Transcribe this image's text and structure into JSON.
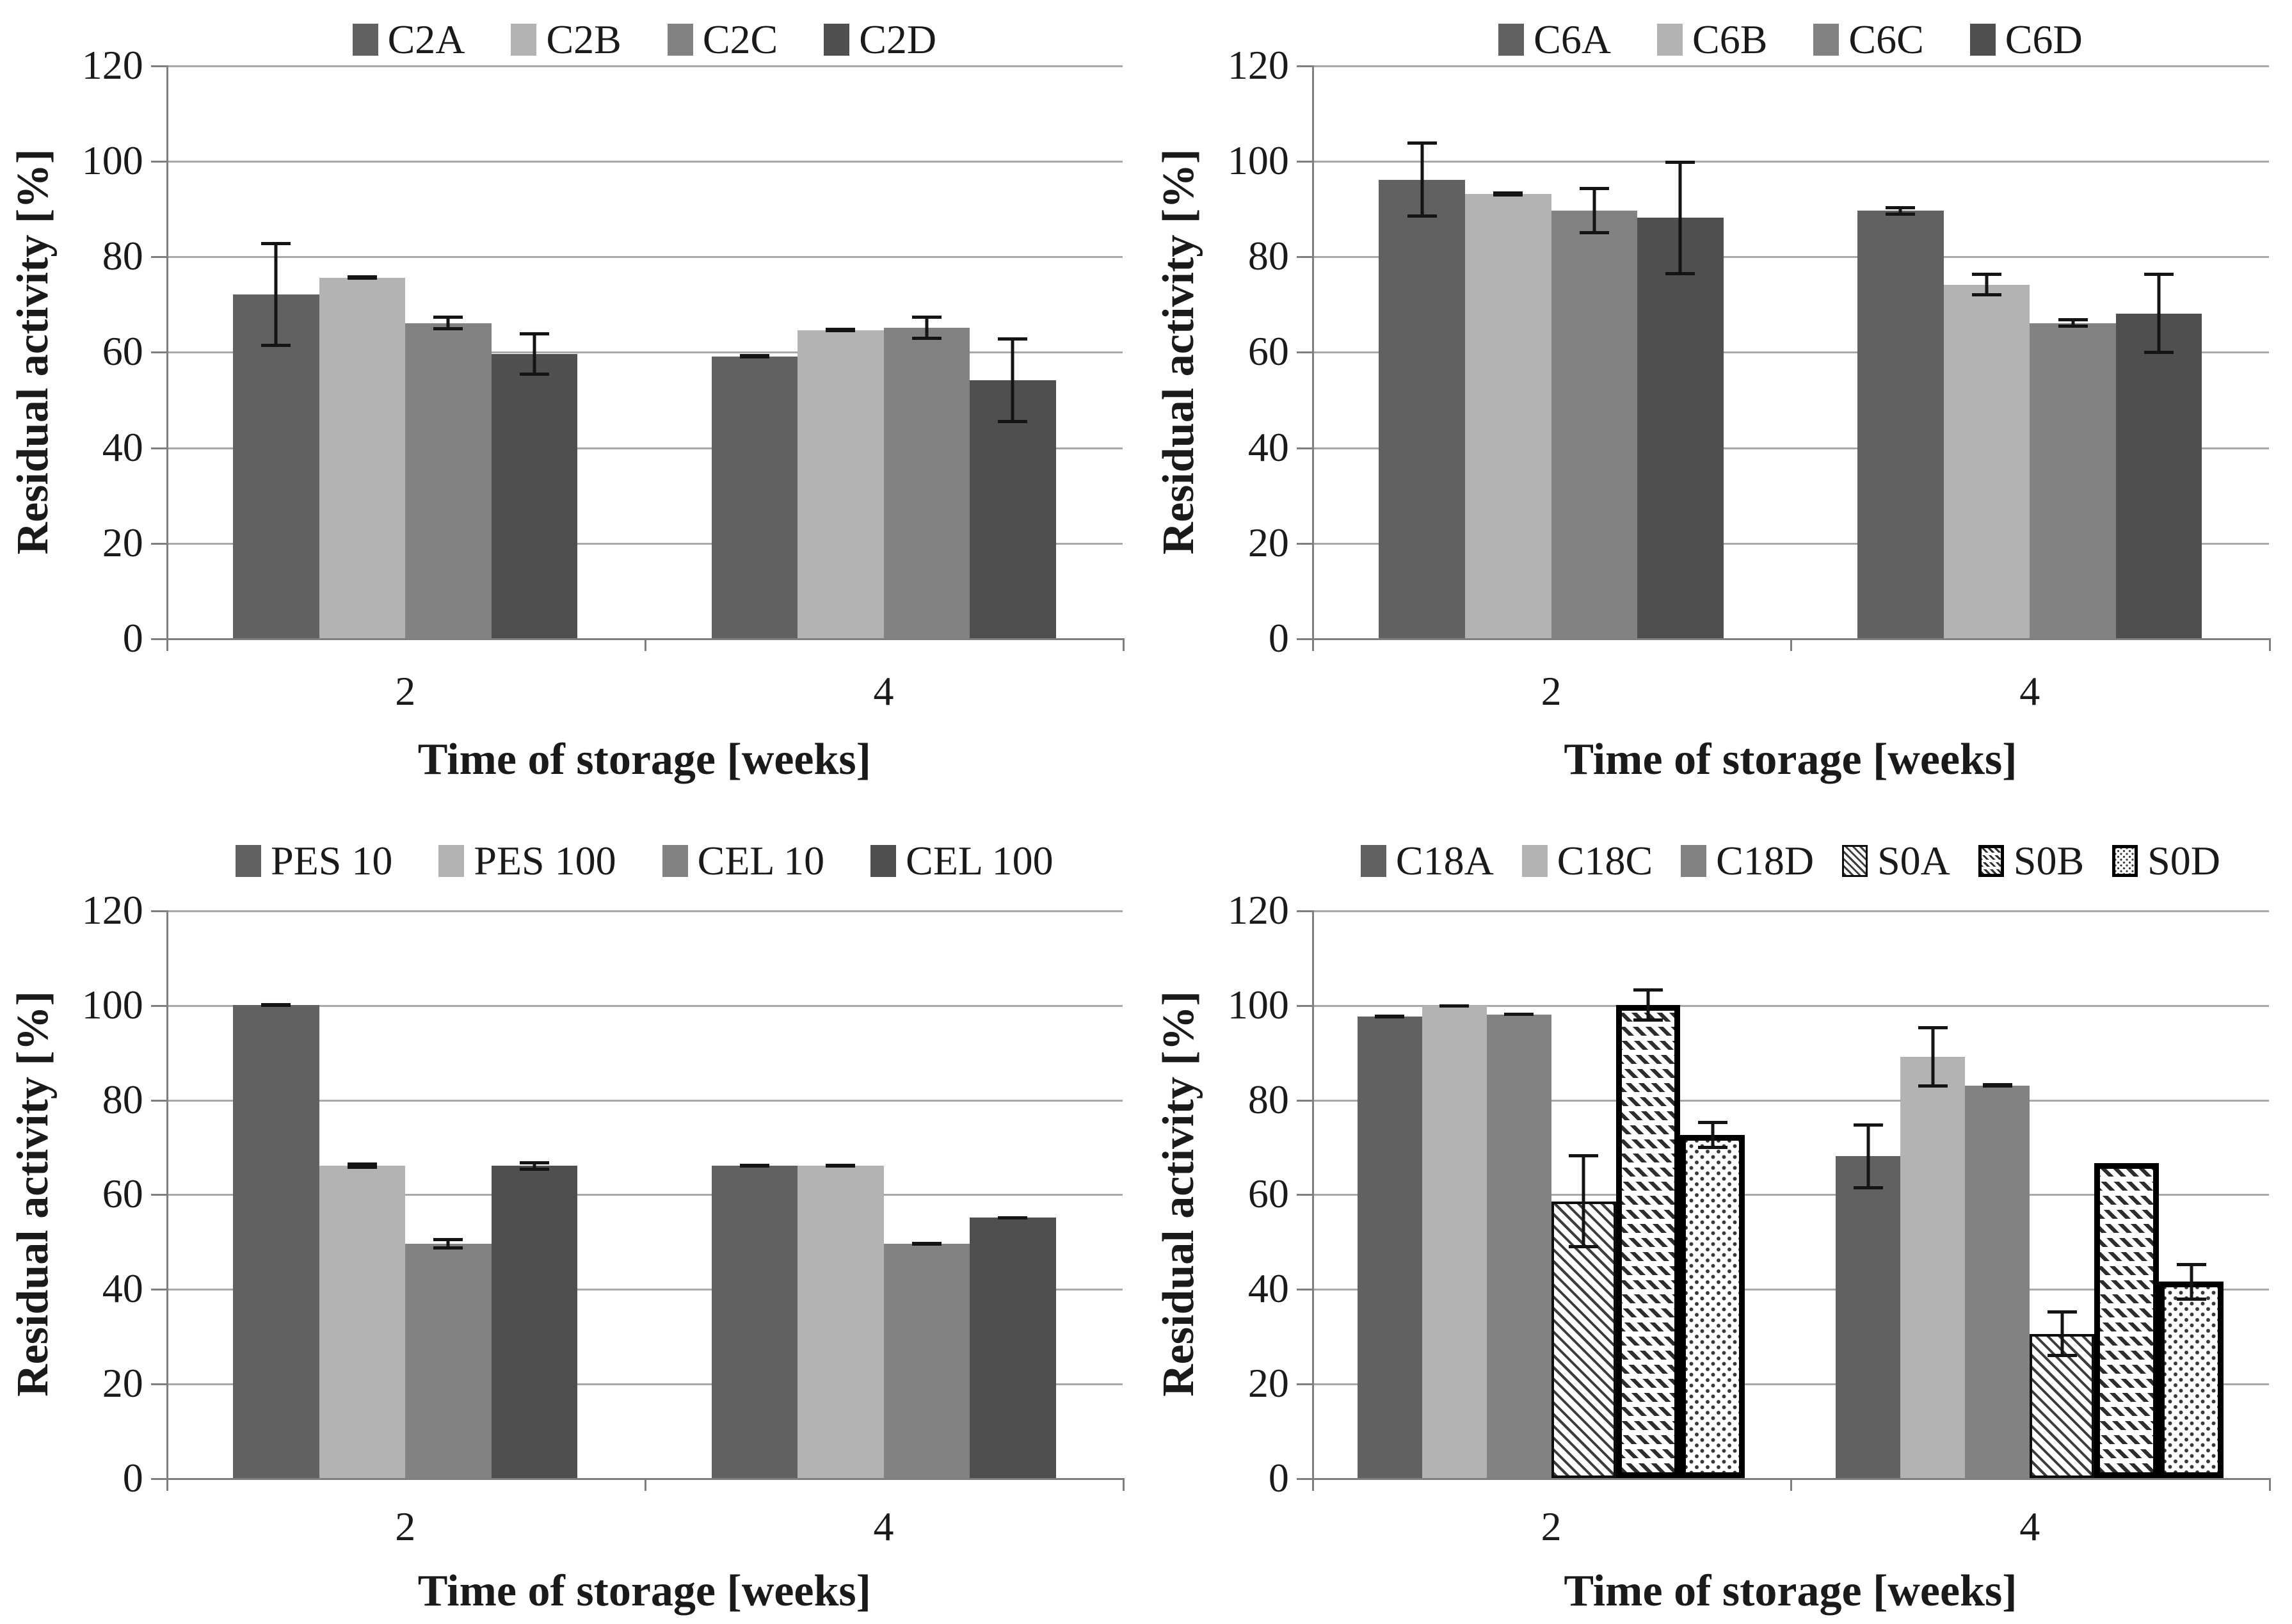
{
  "figure": {
    "ylabel": "Residual activity [%]",
    "xlabel": "Time of storage [weeks]"
  },
  "colors": {
    "series_dark": "#616161",
    "series_light": "#b3b3b3",
    "series_medium": "#828282",
    "series_darkest": "#4f4f4f",
    "gridline": "#a8a8a8",
    "axis": "#7f7f7f",
    "error_bar": "#141414",
    "pattern_ink": "#2d2d2d",
    "pattern_border": "#000000"
  },
  "chart_data": [
    {
      "type": "bar",
      "id": "C2",
      "title": "",
      "ylabel": "Residual activity [%]",
      "xlabel": "Time of storage [weeks]",
      "categories": [
        "2",
        "4"
      ],
      "ylim": [
        0,
        120
      ],
      "yticks": [
        0,
        20,
        40,
        60,
        80,
        100,
        120
      ],
      "grid": true,
      "legend_position": "top",
      "series": [
        {
          "name": "C2A",
          "fill": "#616161",
          "values": [
            72,
            59
          ],
          "errors": [
            11,
            0.5
          ]
        },
        {
          "name": "C2B",
          "fill": "#b3b3b3",
          "values": [
            75.5,
            64.5
          ],
          "errors": [
            0.5,
            0.5
          ]
        },
        {
          "name": "C2C",
          "fill": "#828282",
          "values": [
            66,
            65
          ],
          "errors": [
            1.5,
            2.5
          ]
        },
        {
          "name": "C2D",
          "fill": "#4f4f4f",
          "values": [
            59.5,
            54
          ],
          "errors": [
            4.5,
            9
          ]
        }
      ]
    },
    {
      "type": "bar",
      "id": "C6",
      "title": "",
      "ylabel": "Residual activity [%]",
      "xlabel": "Time of storage [weeks]",
      "categories": [
        "2",
        "4"
      ],
      "ylim": [
        0,
        120
      ],
      "yticks": [
        0,
        20,
        40,
        60,
        80,
        100,
        120
      ],
      "grid": true,
      "legend_position": "top",
      "series": [
        {
          "name": "C6A",
          "fill": "#616161",
          "values": [
            96,
            89.5
          ],
          "errors": [
            8,
            1
          ]
        },
        {
          "name": "C6B",
          "fill": "#b3b3b3",
          "values": [
            93,
            74
          ],
          "errors": [
            0.5,
            2.5
          ]
        },
        {
          "name": "C6C",
          "fill": "#828282",
          "values": [
            89.5,
            66
          ],
          "errors": [
            5,
            1
          ]
        },
        {
          "name": "C6D",
          "fill": "#4f4f4f",
          "values": [
            88,
            68
          ],
          "errors": [
            12,
            8.5
          ]
        }
      ]
    },
    {
      "type": "bar",
      "id": "PES-CEL",
      "title": "",
      "ylabel": "Residual activity [%]",
      "xlabel": "Time of storage [weeks]",
      "categories": [
        "2",
        "4"
      ],
      "ylim": [
        0,
        120
      ],
      "yticks": [
        0,
        20,
        40,
        60,
        80,
        100,
        120
      ],
      "grid": true,
      "legend_position": "top",
      "series": [
        {
          "name": "PES 10",
          "fill": "#616161",
          "values": [
            100,
            66
          ],
          "errors": [
            0.4,
            0.3
          ]
        },
        {
          "name": "PES 100",
          "fill": "#b3b3b3",
          "values": [
            66,
            66
          ],
          "errors": [
            0.7,
            0.3
          ]
        },
        {
          "name": "CEL 10",
          "fill": "#828282",
          "values": [
            49.5,
            49.5
          ],
          "errors": [
            1.2,
            0.3
          ]
        },
        {
          "name": "CEL 100",
          "fill": "#4f4f4f",
          "values": [
            66,
            55
          ],
          "errors": [
            1,
            0.3
          ]
        }
      ]
    },
    {
      "type": "bar",
      "id": "C18-S0",
      "title": "",
      "ylabel": "Residual activity [%]",
      "xlabel": "Time of storage [weeks]",
      "categories": [
        "2",
        "4"
      ],
      "ylim": [
        0,
        120
      ],
      "yticks": [
        0,
        20,
        40,
        60,
        80,
        100,
        120
      ],
      "grid": true,
      "legend_position": "top",
      "series": [
        {
          "name": "C18A",
          "fill": "#616161",
          "values": [
            97.5,
            68
          ],
          "errors": [
            0.4,
            7
          ]
        },
        {
          "name": "C18C",
          "fill": "#b3b3b3",
          "values": [
            99.8,
            89
          ],
          "errors": [
            0.3,
            6.5
          ]
        },
        {
          "name": "C18D",
          "fill": "#828282",
          "values": [
            98,
            83
          ],
          "errors": [
            0.3,
            0.5
          ]
        },
        {
          "name": "S0A",
          "fill": "pattern:s0a",
          "values": [
            58.5,
            30.5
          ],
          "errors": [
            10,
            5
          ]
        },
        {
          "name": "S0B",
          "fill": "pattern:s0b",
          "values": [
            100,
            66.5
          ],
          "errors": [
            3.5,
            0
          ]
        },
        {
          "name": "S0D",
          "fill": "pattern:s0d",
          "values": [
            72.5,
            41.5
          ],
          "errors": [
            3,
            4
          ]
        }
      ]
    }
  ]
}
